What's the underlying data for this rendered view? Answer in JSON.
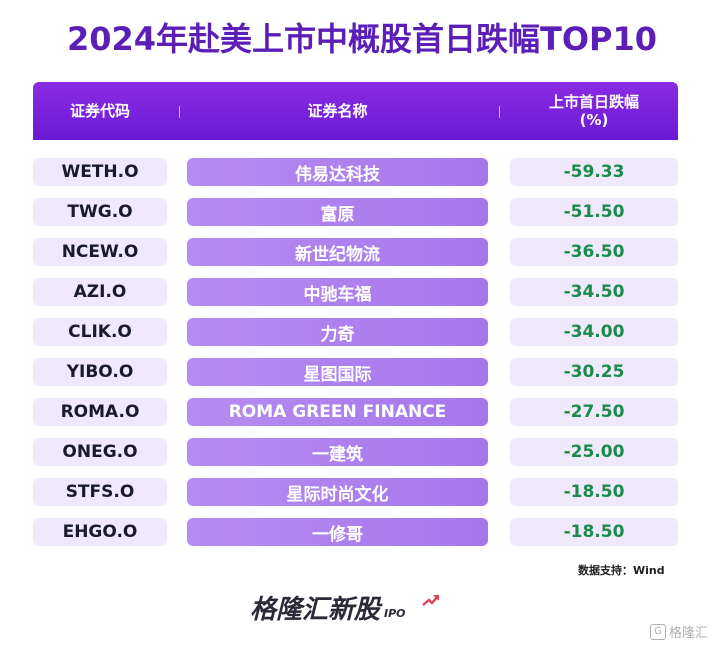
{
  "title": "2024年赴美上市中概股首日跌幅TOP10",
  "header": {
    "code_label": "证券代码",
    "name_label": "证券名称",
    "change_label": "上市首日跌幅",
    "change_unit": "(%)"
  },
  "chart_data": {
    "type": "table",
    "title": "2024年赴美上市中概股首日跌幅TOP10",
    "columns": [
      "证券代码",
      "证券名称",
      "上市首日跌幅(%)"
    ],
    "rows": [
      {
        "code": "WETH.O",
        "name": "伟易达科技",
        "value": "-59.33"
      },
      {
        "code": "TWG.O",
        "name": "富原",
        "value": "-51.50"
      },
      {
        "code": "NCEW.O",
        "name": "新世纪物流",
        "value": "-36.50"
      },
      {
        "code": "AZI.O",
        "name": "中驰车福",
        "value": "-34.50"
      },
      {
        "code": "CLIK.O",
        "name": "力奇",
        "value": "-34.00"
      },
      {
        "code": "YIBO.O",
        "name": "星图国际",
        "value": "-30.25"
      },
      {
        "code": "ROMA.O",
        "name": "ROMA GREEN FINANCE",
        "value": "-27.50"
      },
      {
        "code": "ONEG.O",
        "name": "一建筑",
        "value": "-25.00"
      },
      {
        "code": "STFS.O",
        "name": "星际时尚文化",
        "value": "-18.50"
      },
      {
        "code": "EHGO.O",
        "name": "一修哥",
        "value": "-18.50"
      }
    ]
  },
  "source": "数据支持：Wind",
  "brand": {
    "name": "格隆汇新股",
    "tag": "IPO"
  },
  "watermark": "格隆汇",
  "colors": {
    "accent": "#6a1ad4",
    "title": "#5b1fb8",
    "negative_value": "#1b8a4a",
    "row_bg": "#efe9fb",
    "name_bg": "#a676ec"
  }
}
